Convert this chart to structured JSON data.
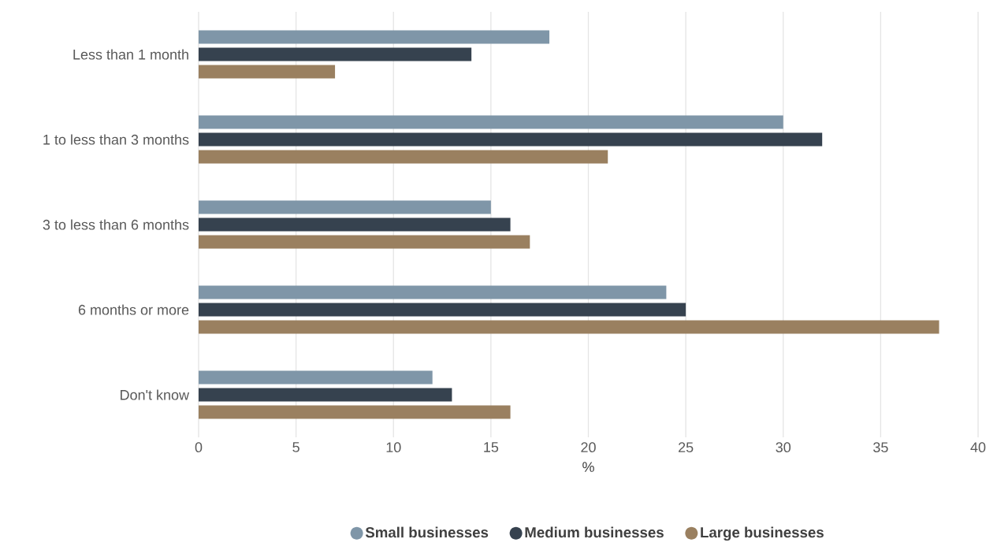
{
  "chart_data": {
    "type": "bar",
    "orientation": "horizontal",
    "xlabel": "%",
    "categories": [
      "Less than 1 month",
      "1 to less than 3 months",
      "3 to less than 6 months",
      "6 months or more",
      "Don't know"
    ],
    "series": [
      {
        "name": "Small businesses",
        "color": "#7f96a8",
        "values": [
          18,
          30,
          15,
          24,
          12
        ]
      },
      {
        "name": "Medium businesses",
        "color": "#36424f",
        "values": [
          14,
          32,
          16,
          25,
          13
        ]
      },
      {
        "name": "Large businesses",
        "color": "#9a8060",
        "values": [
          7,
          21,
          17,
          38,
          16
        ]
      }
    ],
    "xlim": [
      0,
      40
    ],
    "xticks": [
      0,
      5,
      10,
      15,
      20,
      25,
      30,
      35,
      40
    ],
    "grid": "x",
    "legend": "bottom"
  }
}
